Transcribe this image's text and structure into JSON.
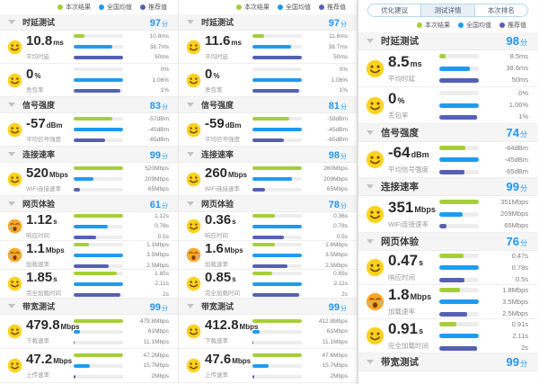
{
  "labels": {
    "score_suffix": "分"
  },
  "colors": {
    "this_result": "#a6ce39",
    "national_avg": "#1e9bf0",
    "recommended": "#5560b5",
    "score": "#2196f3"
  },
  "legend": [
    {
      "name": "this-result",
      "label": "本次结果",
      "color": "#a6ce39"
    },
    {
      "name": "national-average",
      "label": "全国均值",
      "color": "#1e9bf0"
    },
    {
      "name": "recommended-value",
      "label": "推荐值",
      "color": "#5560b5"
    }
  ],
  "tabs": [
    {
      "name": "optimization-advice",
      "label": "优化建议",
      "active": false
    },
    {
      "name": "test-details",
      "label": "测试详情",
      "active": true
    },
    {
      "name": "current-ranking",
      "label": "本次排名",
      "active": false
    }
  ],
  "panels": [
    {
      "name": "result-panel-1",
      "show_tabs": false,
      "sections": [
        {
          "title": "时延测试",
          "score": "97",
          "rows": [
            {
              "value": "10.8",
              "unit": "ms",
              "label": "平均时延",
              "mood": "happy",
              "bars": [
                {
                  "num": 10.8,
                  "text": "10.8ms"
                },
                {
                  "num": 38.7,
                  "text": "38.7ms"
                },
                {
                  "num": 50,
                  "text": "50ms"
                }
              ]
            },
            {
              "value": "0",
              "unit": "%",
              "label": "丢包率",
              "mood": "happy",
              "bars": [
                {
                  "num": 0,
                  "text": "0%"
                },
                {
                  "num": 1.06,
                  "text": "1.06%"
                },
                {
                  "num": 1,
                  "text": "1%"
                }
              ]
            }
          ]
        },
        {
          "title": "信号强度",
          "score": "83",
          "rows": [
            {
              "value": "-57",
              "unit": "dBm",
              "label": "平均信号强度",
              "mood": "happy",
              "bars": [
                {
                  "num": 43,
                  "text": "-57dBm"
                },
                {
                  "num": 55,
                  "text": "-45dBm"
                },
                {
                  "num": 35,
                  "text": "-65dBm"
                }
              ]
            }
          ]
        },
        {
          "title": "连接速率",
          "score": "99",
          "rows": [
            {
              "value": "520",
              "unit": "Mbps",
              "label": "WiFi连接速率",
              "mood": "happy",
              "bars": [
                {
                  "num": 520,
                  "text": "520Mbps"
                },
                {
                  "num": 209,
                  "text": "209Mbps"
                },
                {
                  "num": 65,
                  "text": "65Mbps"
                }
              ]
            }
          ]
        },
        {
          "title": "网页体验",
          "score": "61",
          "rows": [
            {
              "value": "1.12",
              "unit": "s",
              "label": "响应时间",
              "mood": "cry",
              "bars": [
                {
                  "num": 1.12,
                  "text": "1.12s"
                },
                {
                  "num": 0.78,
                  "text": "0.78s"
                },
                {
                  "num": 0.5,
                  "text": "0.5s"
                }
              ]
            },
            {
              "value": "1.1",
              "unit": "Mbps",
              "label": "加载速率",
              "mood": "cry",
              "bars": [
                {
                  "num": 1.1,
                  "text": "1.1Mbps"
                },
                {
                  "num": 3.5,
                  "text": "3.5Mbps"
                },
                {
                  "num": 2.5,
                  "text": "2.5Mbps"
                }
              ]
            },
            {
              "value": "1.85",
              "unit": "s",
              "label": "完全加载时间",
              "mood": "happy",
              "bars": [
                {
                  "num": 1.85,
                  "text": "1.85s"
                },
                {
                  "num": 2.11,
                  "text": "2.11s"
                },
                {
                  "num": 2,
                  "text": "2s"
                }
              ]
            }
          ]
        },
        {
          "title": "带宽测试",
          "score": "99",
          "rows": [
            {
              "value": "479.8",
              "unit": "Mbps",
              "label": "下载速率",
              "mood": "happy",
              "bars": [
                {
                  "num": 479.8,
                  "text": "479.8Mbps"
                },
                {
                  "num": 61,
                  "text": "61Mbps"
                },
                {
                  "num": 11.1,
                  "text": "11.1Mbps"
                }
              ]
            },
            {
              "value": "47.2",
              "unit": "Mbps",
              "label": "上传速率",
              "mood": "happy",
              "bars": [
                {
                  "num": 47.2,
                  "text": "47.2Mbps"
                },
                {
                  "num": 15.7,
                  "text": "15.7Mbps"
                },
                {
                  "num": 2,
                  "text": "2Mbps"
                }
              ]
            }
          ]
        }
      ]
    },
    {
      "name": "result-panel-2",
      "show_tabs": false,
      "sections": [
        {
          "title": "时延测试",
          "score": "97",
          "rows": [
            {
              "value": "11.6",
              "unit": "ms",
              "label": "平均时延",
              "mood": "happy",
              "bars": [
                {
                  "num": 11.6,
                  "text": "11.6ms"
                },
                {
                  "num": 38.7,
                  "text": "38.7ms"
                },
                {
                  "num": 50,
                  "text": "50ms"
                }
              ]
            },
            {
              "value": "0",
              "unit": "%",
              "label": "丢包率",
              "mood": "happy",
              "bars": [
                {
                  "num": 0,
                  "text": "0%"
                },
                {
                  "num": 1.06,
                  "text": "1.06%"
                },
                {
                  "num": 1,
                  "text": "1%"
                }
              ]
            }
          ]
        },
        {
          "title": "信号强度",
          "score": "81",
          "rows": [
            {
              "value": "-59",
              "unit": "dBm",
              "label": "平均信号强度",
              "mood": "happy",
              "bars": [
                {
                  "num": 41,
                  "text": "-59dBm"
                },
                {
                  "num": 55,
                  "text": "-45dBm"
                },
                {
                  "num": 35,
                  "text": "-65dBm"
                }
              ]
            }
          ]
        },
        {
          "title": "连接速率",
          "score": "98",
          "rows": [
            {
              "value": "260",
              "unit": "Mbps",
              "label": "WiFi连接速率",
              "mood": "happy",
              "bars": [
                {
                  "num": 260,
                  "text": "260Mbps"
                },
                {
                  "num": 209,
                  "text": "209Mbps"
                },
                {
                  "num": 65,
                  "text": "65Mbps"
                }
              ]
            }
          ]
        },
        {
          "title": "网页体验",
          "score": "78",
          "rows": [
            {
              "value": "0.36",
              "unit": "s",
              "label": "响应时间",
              "mood": "happy",
              "bars": [
                {
                  "num": 0.36,
                  "text": "0.36s"
                },
                {
                  "num": 0.78,
                  "text": "0.78s"
                },
                {
                  "num": 0.5,
                  "text": "0.5s"
                }
              ]
            },
            {
              "value": "1.6",
              "unit": "Mbps",
              "label": "加载速率",
              "mood": "cry",
              "bars": [
                {
                  "num": 1.6,
                  "text": "1.6Mbps"
                },
                {
                  "num": 3.5,
                  "text": "3.5Mbps"
                },
                {
                  "num": 2.5,
                  "text": "2.5Mbps"
                }
              ]
            },
            {
              "value": "0.85",
              "unit": "s",
              "label": "完全加载时间",
              "mood": "happy",
              "bars": [
                {
                  "num": 0.85,
                  "text": "0.85s"
                },
                {
                  "num": 2.11,
                  "text": "2.11s"
                },
                {
                  "num": 2,
                  "text": "2s"
                }
              ]
            }
          ]
        },
        {
          "title": "带宽测试",
          "score": "99",
          "rows": [
            {
              "value": "412.8",
              "unit": "Mbps",
              "label": "下载速率",
              "mood": "happy",
              "bars": [
                {
                  "num": 412.8,
                  "text": "412.8Mbps"
                },
                {
                  "num": 61,
                  "text": "61Mbps"
                },
                {
                  "num": 11.1,
                  "text": "11.1Mbps"
                }
              ]
            },
            {
              "value": "47.6",
              "unit": "Mbps",
              "label": "上传速率",
              "mood": "happy",
              "bars": [
                {
                  "num": 47.6,
                  "text": "47.6Mbps"
                },
                {
                  "num": 15.7,
                  "text": "15.7Mbps"
                },
                {
                  "num": 2,
                  "text": "2Mbps"
                }
              ]
            }
          ]
        }
      ]
    },
    {
      "name": "result-panel-3",
      "show_tabs": true,
      "sections": [
        {
          "title": "时延测试",
          "score": "98",
          "rows": [
            {
              "value": "8.5",
              "unit": "ms",
              "label": "平均时延",
              "mood": "happy",
              "bars": [
                {
                  "num": 8.5,
                  "text": "8.5ms"
                },
                {
                  "num": 38.6,
                  "text": "38.6ms"
                },
                {
                  "num": 50,
                  "text": "50ms"
                }
              ]
            },
            {
              "value": "0",
              "unit": "%",
              "label": "丢包率",
              "mood": "happy",
              "bars": [
                {
                  "num": 0,
                  "text": "0%"
                },
                {
                  "num": 1.06,
                  "text": "1.06%"
                },
                {
                  "num": 1,
                  "text": "1%"
                }
              ]
            }
          ]
        },
        {
          "title": "信号强度",
          "score": "74",
          "rows": [
            {
              "value": "-64",
              "unit": "dBm",
              "label": "平均信号强度",
              "mood": "happy",
              "bars": [
                {
                  "num": 36,
                  "text": "-64dBm"
                },
                {
                  "num": 55,
                  "text": "-45dBm"
                },
                {
                  "num": 35,
                  "text": "-65dBm"
                }
              ]
            }
          ]
        },
        {
          "title": "连接速率",
          "score": "99",
          "rows": [
            {
              "value": "351",
              "unit": "Mbps",
              "label": "WiFi连接速率",
              "mood": "happy",
              "bars": [
                {
                  "num": 351,
                  "text": "351Mbps"
                },
                {
                  "num": 209,
                  "text": "209Mbps"
                },
                {
                  "num": 65,
                  "text": "65Mbps"
                }
              ]
            }
          ]
        },
        {
          "title": "网页体验",
          "score": "76",
          "rows": [
            {
              "value": "0.47",
              "unit": "s",
              "label": "响应时间",
              "mood": "happy",
              "bars": [
                {
                  "num": 0.47,
                  "text": "0.47s"
                },
                {
                  "num": 0.78,
                  "text": "0.78s"
                },
                {
                  "num": 0.5,
                  "text": "0.5s"
                }
              ]
            },
            {
              "value": "1.8",
              "unit": "Mbps",
              "label": "加载速率",
              "mood": "cry",
              "bars": [
                {
                  "num": 1.8,
                  "text": "1.8Mbps"
                },
                {
                  "num": 3.5,
                  "text": "3.5Mbps"
                },
                {
                  "num": 2.5,
                  "text": "2.5Mbps"
                }
              ]
            },
            {
              "value": "0.91",
              "unit": "s",
              "label": "完全加载时间",
              "mood": "happy",
              "bars": [
                {
                  "num": 0.91,
                  "text": "0.91s"
                },
                {
                  "num": 2.11,
                  "text": "2.11s"
                },
                {
                  "num": 2,
                  "text": "2s"
                }
              ]
            }
          ]
        },
        {
          "title": "带宽测试",
          "score": "99",
          "rows": []
        }
      ]
    }
  ]
}
